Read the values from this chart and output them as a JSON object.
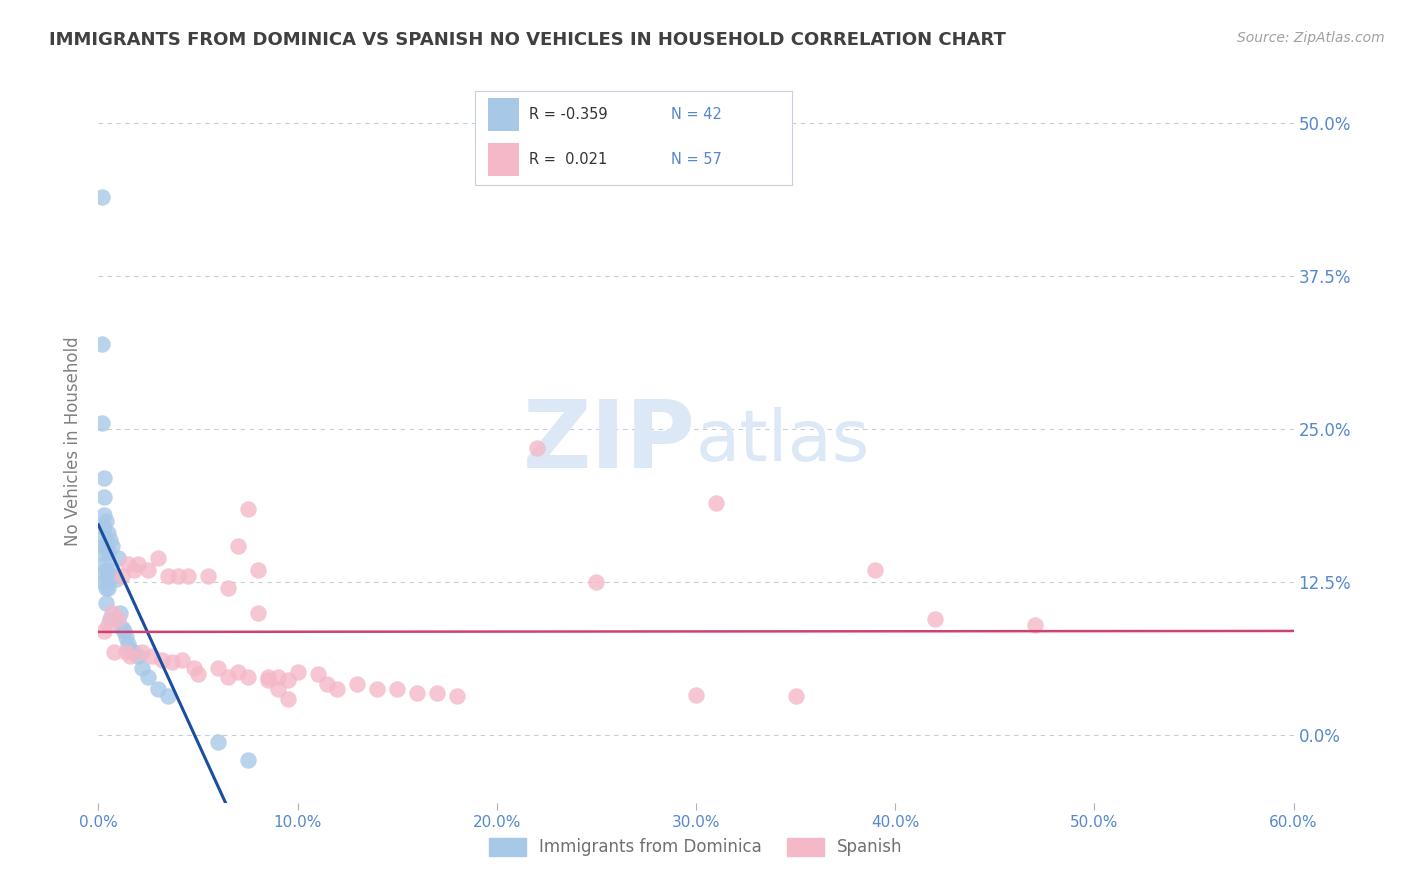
{
  "title": "IMMIGRANTS FROM DOMINICA VS SPANISH NO VEHICLES IN HOUSEHOLD CORRELATION CHART",
  "source": "Source: ZipAtlas.com",
  "ylabel": "No Vehicles in Household",
  "xlim": [
    0.0,
    0.6
  ],
  "ylim": [
    -0.055,
    0.535
  ],
  "xticks": [
    0.0,
    0.1,
    0.2,
    0.3,
    0.4,
    0.5,
    0.6
  ],
  "xticklabels": [
    "0.0%",
    "10.0%",
    "20.0%",
    "30.0%",
    "40.0%",
    "50.0%",
    "60.0%"
  ],
  "yticks": [
    0.0,
    0.125,
    0.25,
    0.375,
    0.5
  ],
  "right_yticklabels": [
    "0.0%",
    "12.5%",
    "25.0%",
    "37.5%",
    "50.0%"
  ],
  "blue_label": "Immigrants from Dominica",
  "pink_label": "Spanish",
  "blue_R": "-0.359",
  "blue_N": "42",
  "pink_R": "0.021",
  "pink_N": "57",
  "blue_color": "#a8c8e8",
  "pink_color": "#f4b8c8",
  "blue_line_color": "#1a4fa0",
  "pink_line_color": "#d04070",
  "grid_color": "#c8ccd8",
  "background_color": "#ffffff",
  "watermark_zip": "ZIP",
  "watermark_atlas": "atlas",
  "watermark_color": "#dce8f5",
  "title_color": "#404040",
  "axis_label_color": "#5588cc",
  "source_color": "#a0a0a0",
  "ylabel_color": "#808080",
  "blue_scatter_x": [
    0.002,
    0.002,
    0.002,
    0.003,
    0.003,
    0.003,
    0.003,
    0.003,
    0.003,
    0.003,
    0.003,
    0.003,
    0.003,
    0.004,
    0.004,
    0.004,
    0.004,
    0.004,
    0.005,
    0.005,
    0.005,
    0.005,
    0.006,
    0.006,
    0.007,
    0.008,
    0.009,
    0.01,
    0.011,
    0.012,
    0.013,
    0.014,
    0.015,
    0.016,
    0.018,
    0.02,
    0.022,
    0.025,
    0.03,
    0.035,
    0.06,
    0.075
  ],
  "blue_scatter_y": [
    0.44,
    0.32,
    0.255,
    0.21,
    0.195,
    0.18,
    0.17,
    0.162,
    0.155,
    0.148,
    0.14,
    0.132,
    0.125,
    0.175,
    0.155,
    0.135,
    0.12,
    0.108,
    0.165,
    0.15,
    0.135,
    0.12,
    0.16,
    0.095,
    0.155,
    0.13,
    0.128,
    0.145,
    0.1,
    0.088,
    0.085,
    0.08,
    0.075,
    0.07,
    0.068,
    0.065,
    0.055,
    0.048,
    0.038,
    0.032,
    -0.005,
    -0.02
  ],
  "pink_scatter_x": [
    0.003,
    0.005,
    0.007,
    0.008,
    0.01,
    0.012,
    0.014,
    0.015,
    0.016,
    0.018,
    0.02,
    0.022,
    0.025,
    0.027,
    0.03,
    0.032,
    0.035,
    0.037,
    0.04,
    0.042,
    0.045,
    0.048,
    0.05,
    0.055,
    0.06,
    0.065,
    0.07,
    0.075,
    0.08,
    0.085,
    0.09,
    0.095,
    0.1,
    0.11,
    0.115,
    0.12,
    0.13,
    0.14,
    0.15,
    0.16,
    0.17,
    0.18,
    0.22,
    0.25,
    0.3,
    0.31,
    0.35,
    0.39,
    0.42,
    0.47,
    0.065,
    0.07,
    0.075,
    0.08,
    0.085,
    0.09,
    0.095
  ],
  "pink_scatter_y": [
    0.085,
    0.09,
    0.1,
    0.068,
    0.095,
    0.13,
    0.068,
    0.14,
    0.065,
    0.135,
    0.14,
    0.068,
    0.135,
    0.065,
    0.145,
    0.062,
    0.13,
    0.06,
    0.13,
    0.062,
    0.13,
    0.055,
    0.05,
    0.13,
    0.055,
    0.048,
    0.052,
    0.048,
    0.135,
    0.048,
    0.048,
    0.045,
    0.052,
    0.05,
    0.042,
    0.038,
    0.042,
    0.038,
    0.038,
    0.035,
    0.035,
    0.032,
    0.235,
    0.125,
    0.033,
    0.19,
    0.032,
    0.135,
    0.095,
    0.09,
    0.12,
    0.155,
    0.185,
    0.1,
    0.045,
    0.038,
    0.03
  ]
}
